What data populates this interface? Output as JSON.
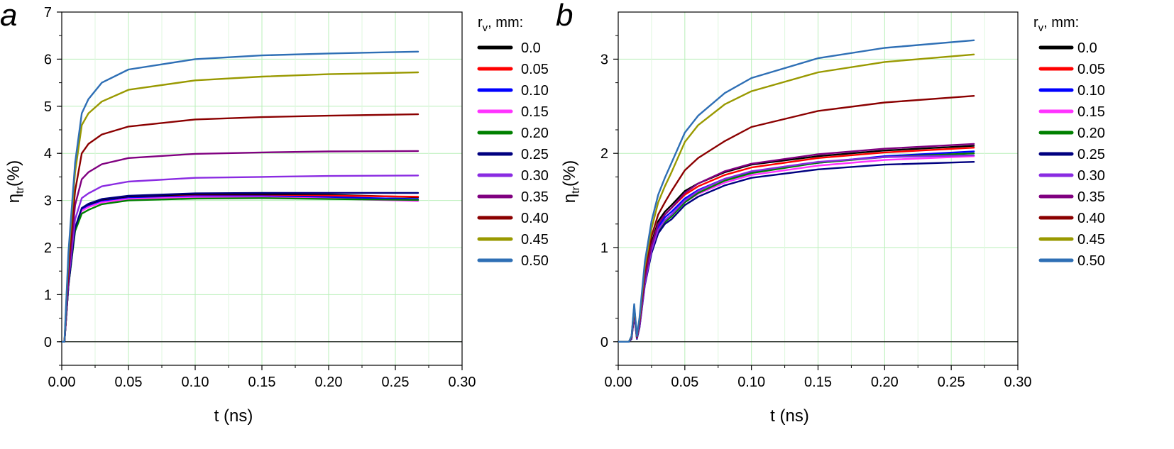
{
  "chart_data": [
    {
      "type": "line",
      "panel_label": "a",
      "xlabel": "t (ns)",
      "ylabel_main": "η",
      "ylabel_sub": "tr",
      "ylabel_suffix": "(%)",
      "xlim": [
        0,
        0.3
      ],
      "ylim": [
        -0.5,
        7
      ],
      "xticks": [
        0,
        0.05,
        0.1,
        0.15,
        0.2,
        0.25,
        0.3
      ],
      "xtick_labels": [
        "0.00",
        "0.05",
        "0.10",
        "0.15",
        "0.20",
        "0.25",
        "0.30"
      ],
      "yticks": [
        0,
        1,
        2,
        3,
        4,
        5,
        6,
        7
      ],
      "ytick_labels": [
        "0",
        "1",
        "2",
        "3",
        "4",
        "5",
        "6",
        "7"
      ],
      "legend_title_main": "r",
      "legend_title_sub": "v",
      "legend_title_suffix": ", mm:",
      "grid": true,
      "series": [
        {
          "name": "0.0",
          "color": "#000000",
          "x": [
            0,
            0.002,
            0.005,
            0.01,
            0.015,
            0.02,
            0.03,
            0.05,
            0.1,
            0.15,
            0.2,
            0.267
          ],
          "y": [
            0,
            0,
            1.2,
            2.4,
            2.82,
            2.9,
            3.0,
            3.08,
            3.13,
            3.13,
            3.12,
            3.07
          ]
        },
        {
          "name": "0.05",
          "color": "#ff0000",
          "x": [
            0,
            0.002,
            0.005,
            0.01,
            0.015,
            0.02,
            0.03,
            0.05,
            0.1,
            0.15,
            0.2,
            0.267
          ],
          "y": [
            0,
            0,
            1.2,
            2.4,
            2.8,
            2.88,
            2.98,
            3.05,
            3.1,
            3.1,
            3.1,
            3.08
          ]
        },
        {
          "name": "0.10",
          "color": "#0000ff",
          "x": [
            0,
            0.002,
            0.005,
            0.01,
            0.015,
            0.02,
            0.03,
            0.05,
            0.1,
            0.15,
            0.2,
            0.267
          ],
          "y": [
            0,
            0,
            1.2,
            2.4,
            2.8,
            2.88,
            2.98,
            3.05,
            3.09,
            3.09,
            3.07,
            3.03
          ]
        },
        {
          "name": "0.15",
          "color": "#ff33ff",
          "x": [
            0,
            0.002,
            0.005,
            0.01,
            0.015,
            0.02,
            0.03,
            0.05,
            0.1,
            0.15,
            0.2,
            0.267
          ],
          "y": [
            0,
            0,
            1.2,
            2.38,
            2.78,
            2.86,
            2.96,
            3.03,
            3.07,
            3.07,
            3.04,
            2.99
          ]
        },
        {
          "name": "0.20",
          "color": "#008000",
          "x": [
            0,
            0.002,
            0.005,
            0.01,
            0.015,
            0.02,
            0.03,
            0.05,
            0.1,
            0.15,
            0.2,
            0.267
          ],
          "y": [
            0,
            0,
            1.18,
            2.35,
            2.72,
            2.8,
            2.92,
            3.0,
            3.04,
            3.05,
            3.03,
            3.01
          ]
        },
        {
          "name": "0.25",
          "color": "#000080",
          "x": [
            0,
            0.002,
            0.005,
            0.01,
            0.015,
            0.02,
            0.03,
            0.05,
            0.1,
            0.15,
            0.2,
            0.267
          ],
          "y": [
            0,
            0,
            1.2,
            2.42,
            2.84,
            2.93,
            3.03,
            3.1,
            3.15,
            3.16,
            3.16,
            3.16
          ]
        },
        {
          "name": "0.30",
          "color": "#8a2be2",
          "x": [
            0,
            0.002,
            0.005,
            0.01,
            0.015,
            0.02,
            0.03,
            0.05,
            0.1,
            0.15,
            0.2,
            0.267
          ],
          "y": [
            0,
            0,
            1.3,
            2.6,
            3.05,
            3.15,
            3.3,
            3.4,
            3.48,
            3.5,
            3.52,
            3.53
          ]
        },
        {
          "name": "0.35",
          "color": "#800080",
          "x": [
            0,
            0.002,
            0.005,
            0.01,
            0.015,
            0.02,
            0.03,
            0.05,
            0.1,
            0.15,
            0.2,
            0.267
          ],
          "y": [
            0,
            0,
            1.4,
            2.9,
            3.45,
            3.6,
            3.77,
            3.9,
            3.99,
            4.02,
            4.04,
            4.05
          ]
        },
        {
          "name": "0.40",
          "color": "#8b0000",
          "x": [
            0,
            0.002,
            0.005,
            0.01,
            0.015,
            0.02,
            0.03,
            0.05,
            0.1,
            0.15,
            0.2,
            0.267
          ],
          "y": [
            0,
            0,
            1.6,
            3.2,
            4.0,
            4.2,
            4.4,
            4.57,
            4.72,
            4.77,
            4.8,
            4.83
          ]
        },
        {
          "name": "0.45",
          "color": "#999900",
          "x": [
            0,
            0.002,
            0.005,
            0.01,
            0.015,
            0.02,
            0.03,
            0.05,
            0.1,
            0.15,
            0.2,
            0.267
          ],
          "y": [
            0,
            0,
            1.8,
            3.6,
            4.6,
            4.85,
            5.1,
            5.35,
            5.55,
            5.63,
            5.68,
            5.72
          ]
        },
        {
          "name": "0.50",
          "color": "#2e6fb5",
          "x": [
            0,
            0.002,
            0.005,
            0.01,
            0.015,
            0.02,
            0.03,
            0.05,
            0.1,
            0.15,
            0.2,
            0.267
          ],
          "y": [
            0,
            0,
            1.9,
            3.8,
            4.85,
            5.15,
            5.5,
            5.78,
            6.0,
            6.08,
            6.12,
            6.16
          ]
        }
      ]
    },
    {
      "type": "line",
      "panel_label": "b",
      "xlabel": "t (ns)",
      "ylabel_main": "η",
      "ylabel_sub": "tr",
      "ylabel_suffix": "(%)",
      "xlim": [
        0,
        0.3
      ],
      "ylim": [
        -0.25,
        3.5
      ],
      "xticks": [
        0,
        0.05,
        0.1,
        0.15,
        0.2,
        0.25,
        0.3
      ],
      "xtick_labels": [
        "0.00",
        "0.05",
        "0.10",
        "0.15",
        "0.20",
        "0.25",
        "0.30"
      ],
      "yticks": [
        0,
        1,
        2,
        3
      ],
      "ytick_labels": [
        "0",
        "1",
        "2",
        "3"
      ],
      "legend_title_main": "r",
      "legend_title_sub": "v",
      "legend_title_suffix": ", mm:",
      "grid": true,
      "series": [
        {
          "name": "0.0",
          "color": "#000000",
          "x": [
            0,
            0.008,
            0.01,
            0.012,
            0.014,
            0.016,
            0.02,
            0.025,
            0.03,
            0.035,
            0.04,
            0.05,
            0.06,
            0.08,
            0.1,
            0.15,
            0.2,
            0.267
          ],
          "y": [
            0,
            0,
            0.05,
            0.35,
            0.05,
            0.2,
            0.7,
            1.05,
            1.28,
            1.38,
            1.45,
            1.6,
            1.68,
            1.8,
            1.88,
            1.97,
            2.03,
            2.08
          ]
        },
        {
          "name": "0.05",
          "color": "#ff0000",
          "x": [
            0,
            0.008,
            0.01,
            0.012,
            0.014,
            0.016,
            0.02,
            0.025,
            0.03,
            0.035,
            0.04,
            0.05,
            0.06,
            0.08,
            0.1,
            0.15,
            0.2,
            0.267
          ],
          "y": [
            0,
            0,
            0.05,
            0.34,
            0.05,
            0.2,
            0.68,
            1.02,
            1.25,
            1.35,
            1.42,
            1.56,
            1.65,
            1.77,
            1.85,
            1.95,
            2.01,
            2.06
          ]
        },
        {
          "name": "0.10",
          "color": "#0000ff",
          "x": [
            0,
            0.008,
            0.01,
            0.012,
            0.014,
            0.016,
            0.02,
            0.025,
            0.03,
            0.035,
            0.04,
            0.05,
            0.06,
            0.08,
            0.1,
            0.15,
            0.2,
            0.267
          ],
          "y": [
            0,
            0,
            0.04,
            0.32,
            0.04,
            0.18,
            0.65,
            1.0,
            1.22,
            1.32,
            1.38,
            1.52,
            1.61,
            1.73,
            1.8,
            1.9,
            1.97,
            2.02
          ]
        },
        {
          "name": "0.15",
          "color": "#ff33ff",
          "x": [
            0,
            0.008,
            0.01,
            0.012,
            0.014,
            0.016,
            0.02,
            0.025,
            0.03,
            0.035,
            0.04,
            0.05,
            0.06,
            0.08,
            0.1,
            0.15,
            0.2,
            0.267
          ],
          "y": [
            0,
            0,
            0.04,
            0.3,
            0.04,
            0.16,
            0.62,
            0.97,
            1.18,
            1.28,
            1.34,
            1.48,
            1.57,
            1.69,
            1.77,
            1.87,
            1.93,
            1.97
          ]
        },
        {
          "name": "0.20",
          "color": "#008000",
          "x": [
            0,
            0.008,
            0.01,
            0.012,
            0.014,
            0.016,
            0.02,
            0.025,
            0.03,
            0.035,
            0.04,
            0.05,
            0.06,
            0.08,
            0.1,
            0.15,
            0.2,
            0.267
          ],
          "y": [
            0,
            0,
            0.04,
            0.3,
            0.04,
            0.16,
            0.62,
            0.96,
            1.17,
            1.27,
            1.33,
            1.48,
            1.58,
            1.71,
            1.79,
            1.9,
            1.96,
            2.0
          ]
        },
        {
          "name": "0.25",
          "color": "#000080",
          "x": [
            0,
            0.008,
            0.01,
            0.012,
            0.014,
            0.016,
            0.02,
            0.025,
            0.03,
            0.035,
            0.04,
            0.05,
            0.06,
            0.08,
            0.1,
            0.15,
            0.2,
            0.267
          ],
          "y": [
            0,
            0,
            0.03,
            0.28,
            0.03,
            0.15,
            0.6,
            0.94,
            1.15,
            1.25,
            1.3,
            1.45,
            1.54,
            1.66,
            1.74,
            1.83,
            1.88,
            1.91
          ]
        },
        {
          "name": "0.30",
          "color": "#8a2be2",
          "x": [
            0,
            0.008,
            0.01,
            0.012,
            0.014,
            0.016,
            0.02,
            0.025,
            0.03,
            0.035,
            0.04,
            0.05,
            0.06,
            0.08,
            0.1,
            0.15,
            0.2,
            0.267
          ],
          "y": [
            0,
            0,
            0.04,
            0.3,
            0.04,
            0.16,
            0.62,
            0.97,
            1.19,
            1.29,
            1.35,
            1.5,
            1.6,
            1.73,
            1.81,
            1.91,
            1.96,
            1.98
          ]
        },
        {
          "name": "0.35",
          "color": "#800080",
          "x": [
            0,
            0.008,
            0.01,
            0.012,
            0.014,
            0.016,
            0.02,
            0.025,
            0.03,
            0.035,
            0.04,
            0.05,
            0.06,
            0.08,
            0.1,
            0.15,
            0.2,
            0.267
          ],
          "y": [
            0,
            0,
            0.05,
            0.33,
            0.05,
            0.19,
            0.67,
            1.02,
            1.25,
            1.35,
            1.42,
            1.58,
            1.68,
            1.81,
            1.89,
            1.99,
            2.05,
            2.1
          ]
        },
        {
          "name": "0.40",
          "color": "#8b0000",
          "x": [
            0,
            0.008,
            0.01,
            0.012,
            0.014,
            0.016,
            0.02,
            0.025,
            0.03,
            0.035,
            0.04,
            0.05,
            0.06,
            0.08,
            0.1,
            0.15,
            0.2,
            0.267
          ],
          "y": [
            0,
            0,
            0.05,
            0.36,
            0.05,
            0.22,
            0.75,
            1.12,
            1.35,
            1.48,
            1.6,
            1.82,
            1.95,
            2.13,
            2.28,
            2.45,
            2.54,
            2.61
          ]
        },
        {
          "name": "0.45",
          "color": "#999900",
          "x": [
            0,
            0.008,
            0.01,
            0.012,
            0.014,
            0.016,
            0.02,
            0.025,
            0.03,
            0.035,
            0.04,
            0.05,
            0.06,
            0.08,
            0.1,
            0.15,
            0.2,
            0.267
          ],
          "y": [
            0,
            0,
            0.06,
            0.38,
            0.06,
            0.24,
            0.8,
            1.2,
            1.48,
            1.65,
            1.8,
            2.12,
            2.3,
            2.52,
            2.66,
            2.86,
            2.97,
            3.05
          ]
        },
        {
          "name": "0.50",
          "color": "#2e6fb5",
          "x": [
            0,
            0.008,
            0.01,
            0.012,
            0.014,
            0.016,
            0.02,
            0.025,
            0.03,
            0.035,
            0.04,
            0.05,
            0.06,
            0.08,
            0.1,
            0.15,
            0.2,
            0.267
          ],
          "y": [
            0,
            0,
            0.06,
            0.4,
            0.06,
            0.26,
            0.85,
            1.28,
            1.56,
            1.74,
            1.9,
            2.22,
            2.4,
            2.64,
            2.8,
            3.01,
            3.12,
            3.2
          ]
        }
      ]
    }
  ]
}
